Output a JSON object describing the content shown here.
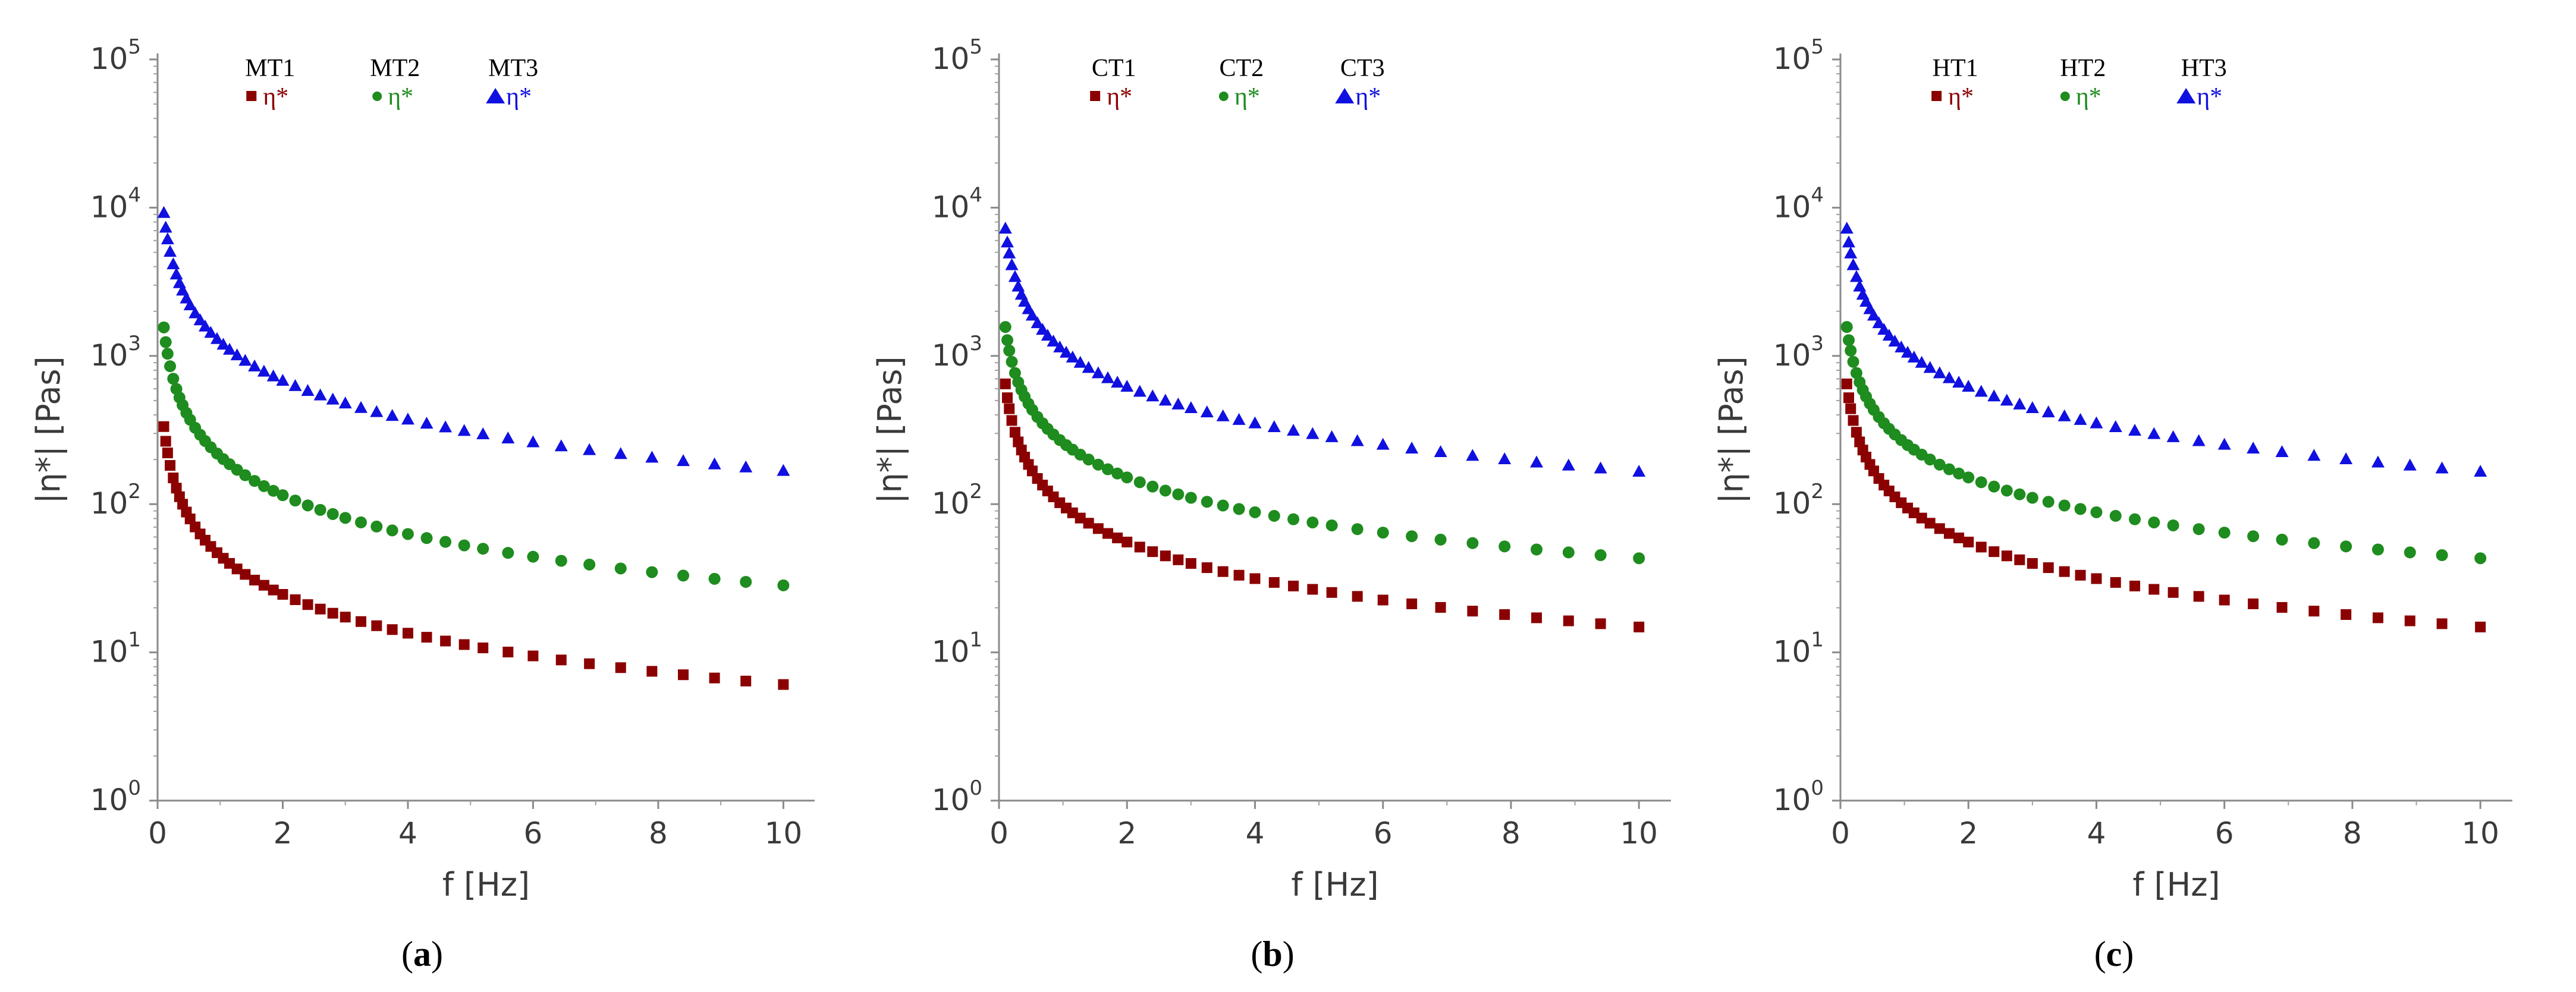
{
  "chart_data": [
    {
      "type": "scatter",
      "panel_label": "a",
      "xlabel": "f [Hz]",
      "ylabel": "|η*| [Pas]",
      "yscale": "log",
      "xlim": [
        0,
        10.5
      ],
      "ylim": [
        1,
        100000
      ],
      "xticks": [
        0,
        2,
        4,
        6,
        8,
        10
      ],
      "xtick_labels": [
        "0",
        "2",
        "4",
        "6",
        "8",
        "10"
      ],
      "ytick_labels": [
        {
          "base": "10",
          "exp": "0"
        },
        {
          "base": "10",
          "exp": "1"
        },
        {
          "base": "10",
          "exp": "2"
        },
        {
          "base": "10",
          "exp": "3"
        },
        {
          "base": "10",
          "exp": "4"
        },
        {
          "base": "10",
          "exp": "5"
        }
      ],
      "series": [
        {
          "name": "MT1",
          "symbol_label": "η*",
          "marker": "square",
          "color": "#8B0000",
          "c": 45,
          "n": 0.87
        },
        {
          "name": "MT2",
          "symbol_label": "η*",
          "marker": "circle",
          "color": "#1E8C1E",
          "c": 210,
          "n": 0.87
        },
        {
          "name": "MT3",
          "symbol_label": "η*",
          "marker": "triangle",
          "color": "#1010E0",
          "c": 1250,
          "n": 0.87
        }
      ]
    },
    {
      "type": "scatter",
      "panel_label": "b",
      "xlabel": "f [Hz]",
      "ylabel": "|η*| [Pas]",
      "yscale": "log",
      "xlim": [
        0,
        10.5
      ],
      "ylim": [
        1,
        100000
      ],
      "xticks": [
        0,
        2,
        4,
        6,
        8,
        10
      ],
      "xtick_labels": [
        "0",
        "2",
        "4",
        "6",
        "8",
        "10"
      ],
      "ytick_labels": [
        {
          "base": "10",
          "exp": "0"
        },
        {
          "base": "10",
          "exp": "1"
        },
        {
          "base": "10",
          "exp": "2"
        },
        {
          "base": "10",
          "exp": "3"
        },
        {
          "base": "10",
          "exp": "4"
        },
        {
          "base": "10",
          "exp": "5"
        }
      ],
      "series": [
        {
          "name": "CT1",
          "symbol_label": "η*",
          "marker": "square",
          "color": "#8B0000",
          "c": 98,
          "n": 0.82
        },
        {
          "name": "CT2",
          "symbol_label": "η*",
          "marker": "circle",
          "color": "#1E8C1E",
          "c": 260,
          "n": 0.78
        },
        {
          "name": "CT3",
          "symbol_label": "η*",
          "marker": "triangle",
          "color": "#1010E0",
          "c": 1100,
          "n": 0.82
        }
      ]
    },
    {
      "type": "scatter",
      "panel_label": "c",
      "xlabel": "f [Hz]",
      "ylabel": "|η*| [Pas]",
      "yscale": "log",
      "xlim": [
        0,
        10.5
      ],
      "ylim": [
        1,
        100000
      ],
      "xticks": [
        0,
        2,
        4,
        6,
        8,
        10
      ],
      "xtick_labels": [
        "0",
        "2",
        "4",
        "6",
        "8",
        "10"
      ],
      "ytick_labels": [
        {
          "base": "10",
          "exp": "0"
        },
        {
          "base": "10",
          "exp": "1"
        },
        {
          "base": "10",
          "exp": "2"
        },
        {
          "base": "10",
          "exp": "3"
        },
        {
          "base": "10",
          "exp": "4"
        },
        {
          "base": "10",
          "exp": "5"
        }
      ],
      "series": [
        {
          "name": "HT1",
          "symbol_label": "η*",
          "marker": "square",
          "color": "#8B0000",
          "c": 98,
          "n": 0.82
        },
        {
          "name": "HT2",
          "symbol_label": "η*",
          "marker": "circle",
          "color": "#1E8C1E",
          "c": 260,
          "n": 0.78
        },
        {
          "name": "HT3",
          "symbol_label": "η*",
          "marker": "triangle",
          "color": "#1010E0",
          "c": 1100,
          "n": 0.82
        }
      ]
    }
  ],
  "frequencies_hz": [
    0.1,
    0.13,
    0.16,
    0.2,
    0.25,
    0.3,
    0.35,
    0.4,
    0.46,
    0.52,
    0.6,
    0.68,
    0.76,
    0.85,
    0.95,
    1.05,
    1.15,
    1.27,
    1.4,
    1.55,
    1.7,
    1.85,
    2.0,
    2.2,
    2.4,
    2.6,
    2.8,
    3.0,
    3.25,
    3.5,
    3.75,
    4.0,
    4.3,
    4.6,
    4.9,
    5.2,
    5.6,
    6.0,
    6.45,
    6.9,
    7.4,
    7.9,
    8.4,
    8.9,
    9.4,
    10.0
  ]
}
